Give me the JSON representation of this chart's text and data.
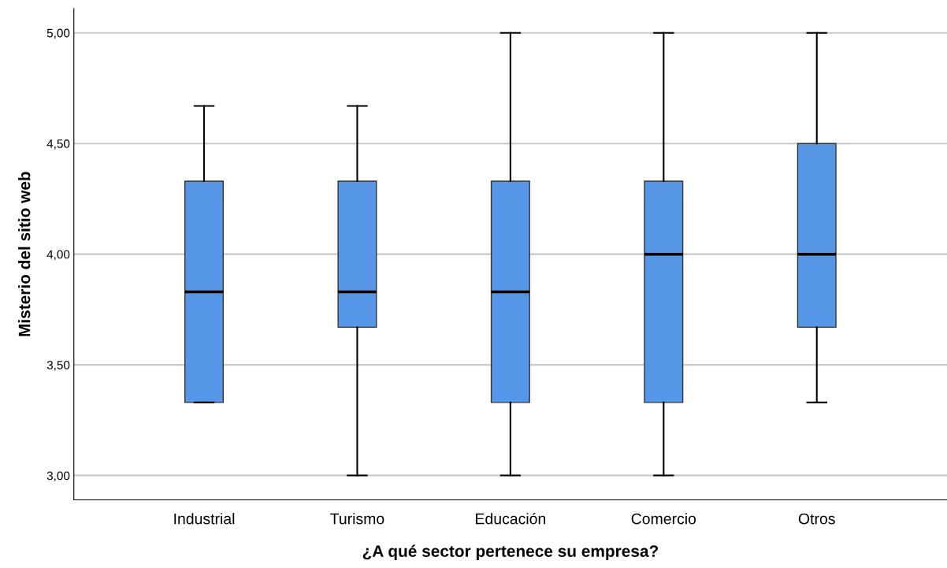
{
  "chart_data": {
    "type": "box",
    "xlabel": "¿A qué sector pertenece su empresa?",
    "ylabel": "Misterio del sitio web",
    "categories": [
      "Industrial",
      "Turismo",
      "Educación",
      "Comercio",
      "Otros"
    ],
    "boxes": [
      {
        "low": 3.33,
        "q1": 3.33,
        "median": 3.83,
        "q3": 4.33,
        "high": 4.67
      },
      {
        "low": 3.0,
        "q1": 3.67,
        "median": 3.83,
        "q3": 4.33,
        "high": 4.67
      },
      {
        "low": 3.0,
        "q1": 3.33,
        "median": 3.83,
        "q3": 4.33,
        "high": 5.0
      },
      {
        "low": 3.0,
        "q1": 3.33,
        "median": 4.0,
        "q3": 4.33,
        "high": 5.0
      },
      {
        "low": 3.33,
        "q1": 3.67,
        "median": 4.0,
        "q3": 4.5,
        "high": 5.0
      }
    ],
    "color": "#5596e6",
    "ylim": [
      2.89,
      5.11
    ],
    "yticks": [
      {
        "value": 3.0,
        "label": "3,00"
      },
      {
        "value": 3.5,
        "label": "3,50"
      },
      {
        "value": 4.0,
        "label": "4,00"
      },
      {
        "value": 4.5,
        "label": "4,50"
      },
      {
        "value": 5.0,
        "label": "5,00"
      }
    ],
    "grid": "y"
  }
}
